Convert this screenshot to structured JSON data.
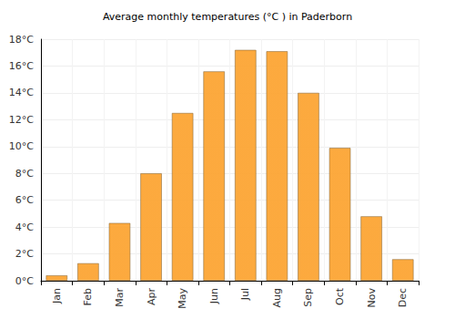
{
  "chart_data": {
    "type": "bar",
    "title": "Average monthly temperatures (°C ) in Paderborn",
    "categories": [
      "Jan",
      "Feb",
      "Mar",
      "Apr",
      "May",
      "Jun",
      "Jul",
      "Aug",
      "Sep",
      "Oct",
      "Nov",
      "Dec"
    ],
    "values": [
      0.4,
      1.3,
      4.3,
      8.0,
      12.5,
      15.6,
      17.2,
      17.1,
      14.0,
      9.9,
      4.8,
      1.6
    ],
    "color": "#fca534",
    "ylim": [
      0,
      18
    ],
    "yticks": [
      {
        "value": 0,
        "label": "0°C"
      },
      {
        "value": 2,
        "label": "2°C"
      },
      {
        "value": 4,
        "label": "4°C"
      },
      {
        "value": 6,
        "label": "6°C"
      },
      {
        "value": 8,
        "label": "8°C"
      },
      {
        "value": 10,
        "label": "10°C"
      },
      {
        "value": 12,
        "label": "12°C"
      },
      {
        "value": 14,
        "label": "14°C"
      },
      {
        "value": 16,
        "label": "16°C"
      },
      {
        "value": 18,
        "label": "18°C"
      }
    ],
    "grid": true
  }
}
